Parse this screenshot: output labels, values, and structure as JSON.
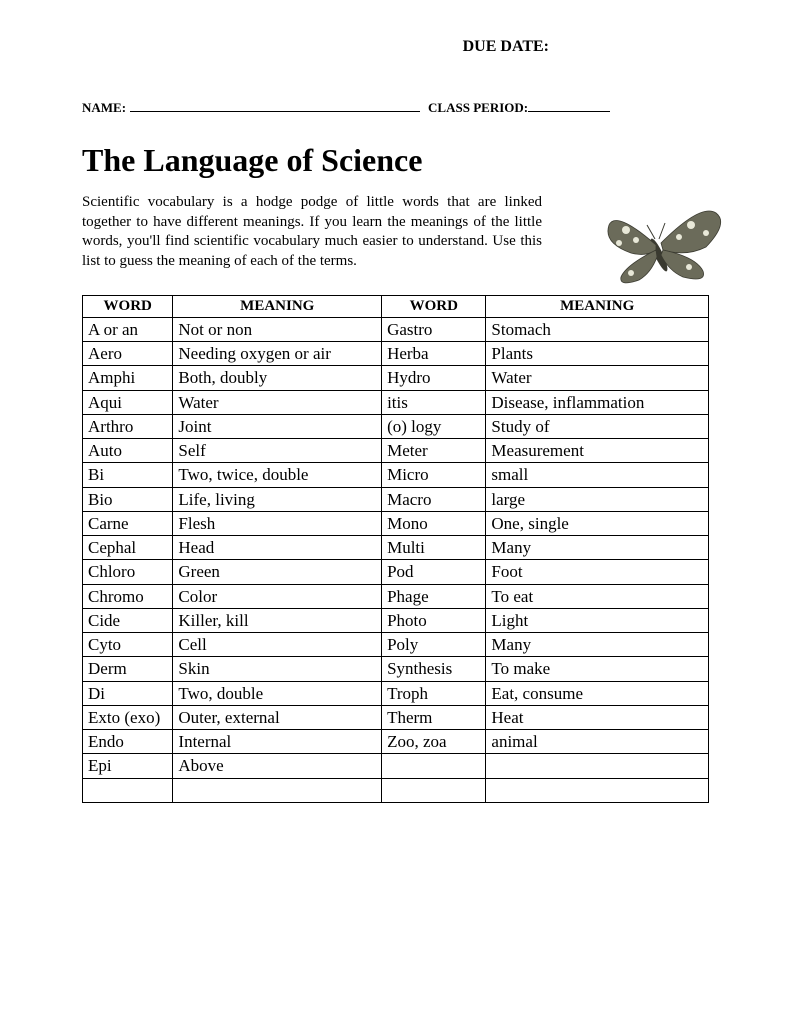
{
  "header": {
    "due_date_label": "DUE DATE:",
    "name_label": "NAME:",
    "class_period_label": "CLASS PERIOD:"
  },
  "title": "The Language of Science",
  "intro_text": "Scientific vocabulary is a hodge podge of little words that are linked together to have different meanings. If you learn the meanings of the little words, you'll find scientific vocabulary much easier to understand. Use this list to guess the meaning of each of the terms.",
  "table": {
    "headers": {
      "word": "WORD",
      "meaning": "MEANING",
      "word2": "WORD",
      "meaning2": "MEANING"
    },
    "rows": [
      {
        "w1": "A or an",
        "m1": "Not or non",
        "w2": "Gastro",
        "m2": "Stomach"
      },
      {
        "w1": "Aero",
        "m1": "Needing oxygen or air",
        "w2": "Herba",
        "m2": "Plants"
      },
      {
        "w1": "Amphi",
        "m1": "Both, doubly",
        "w2": "Hydro",
        "m2": "Water"
      },
      {
        "w1": "Aqui",
        "m1": "Water",
        "w2": "itis",
        "m2": "Disease, inflammation"
      },
      {
        "w1": "Arthro",
        "m1": "Joint",
        "w2": "(o) logy",
        "m2": "Study of"
      },
      {
        "w1": "Auto",
        "m1": "Self",
        "w2": "Meter",
        "m2": "Measurement"
      },
      {
        "w1": "Bi",
        "m1": "Two, twice, double",
        "w2": "Micro",
        "m2": "small"
      },
      {
        "w1": "Bio",
        "m1": "Life, living",
        "w2": "Macro",
        "m2": "large"
      },
      {
        "w1": "Carne",
        "m1": "Flesh",
        "w2": "Mono",
        "m2": "One, single"
      },
      {
        "w1": "Cephal",
        "m1": "Head",
        "w2": "Multi",
        "m2": "Many"
      },
      {
        "w1": "Chloro",
        "m1": "Green",
        "w2": "Pod",
        "m2": "Foot"
      },
      {
        "w1": "Chromo",
        "m1": "Color",
        "w2": "Phage",
        "m2": "To eat"
      },
      {
        "w1": "Cide",
        "m1": "Killer, kill",
        "w2": "Photo",
        "m2": "Light"
      },
      {
        "w1": "Cyto",
        "m1": "Cell",
        "w2": "Poly",
        "m2": "Many"
      },
      {
        "w1": "Derm",
        "m1": "Skin",
        "w2": "Synthesis",
        "m2": "To make"
      },
      {
        "w1": "Di",
        "m1": "Two, double",
        "w2": "Troph",
        "m2": "Eat, consume"
      },
      {
        "w1": "Exto (exo)",
        "m1": "Outer, external",
        "w2": "Therm",
        "m2": "Heat"
      },
      {
        "w1": "Endo",
        "m1": "Internal",
        "w2": "Zoo, zoa",
        "m2": "animal"
      },
      {
        "w1": "Epi",
        "m1": "Above",
        "w2": "",
        "m2": ""
      },
      {
        "w1": "",
        "m1": "",
        "w2": "",
        "m2": ""
      }
    ]
  },
  "colors": {
    "text": "#000000",
    "background": "#ffffff",
    "border": "#000000",
    "butterfly_wing": "#6b6b5a",
    "butterfly_spots": "#e8e8d8",
    "butterfly_body": "#3a3a30"
  }
}
